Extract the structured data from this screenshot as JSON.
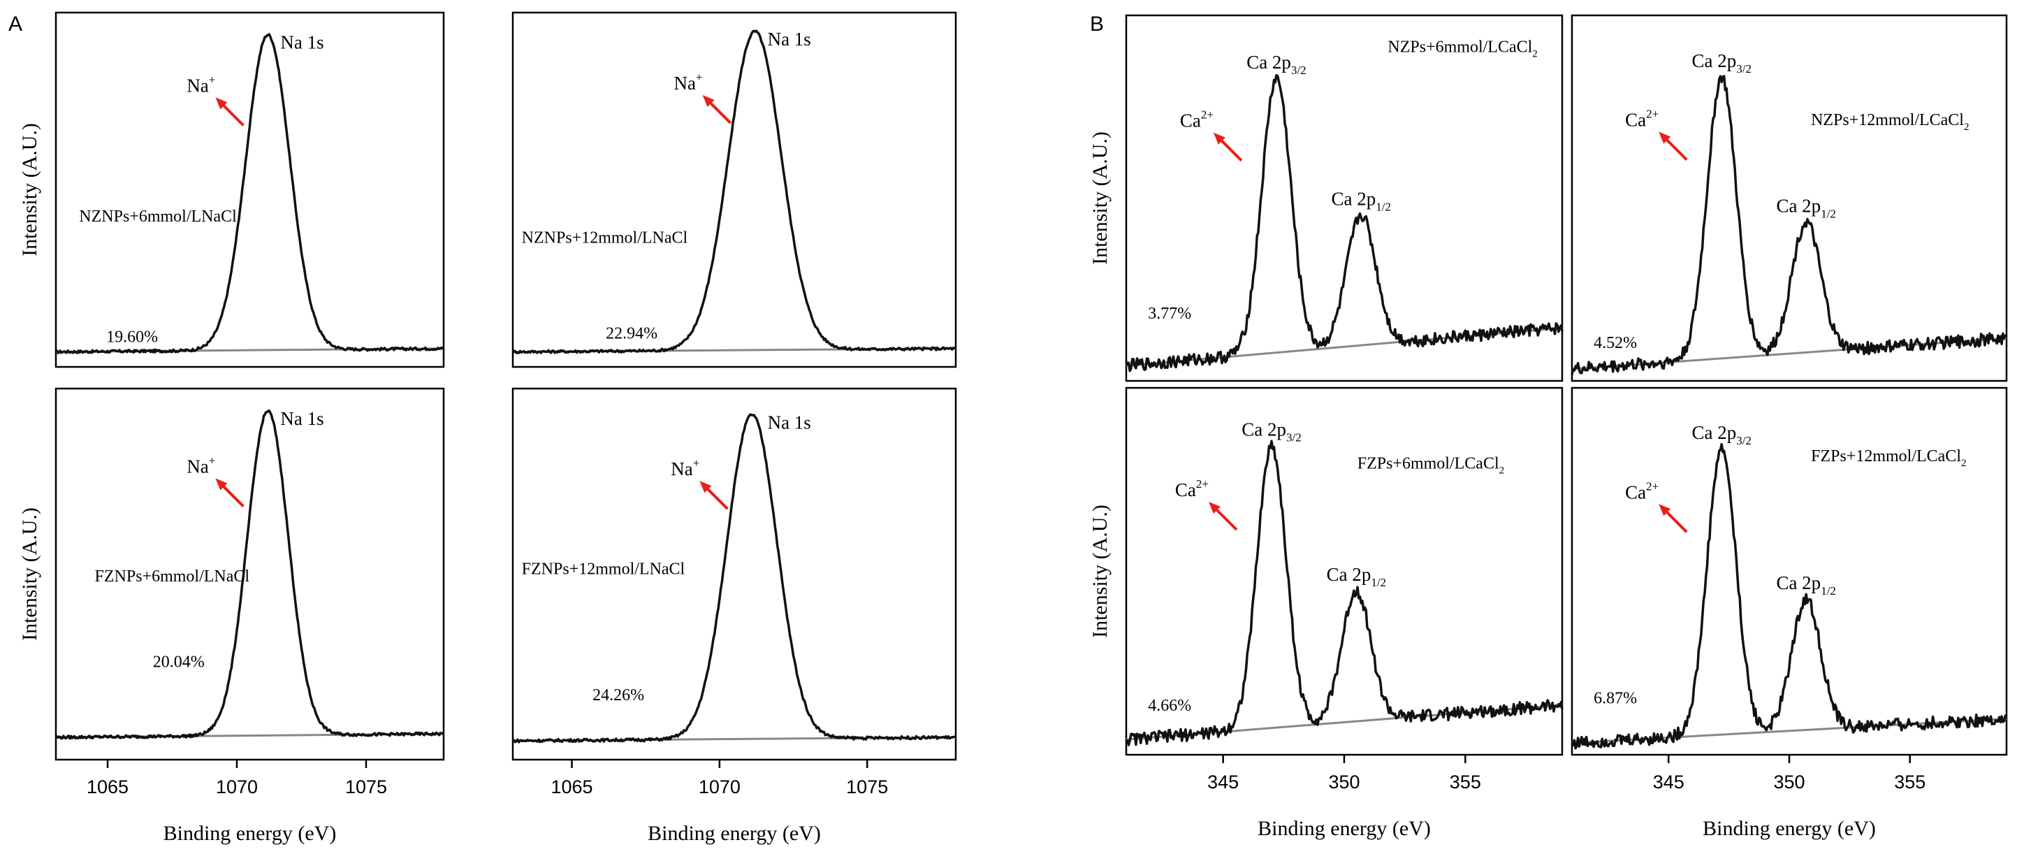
{
  "figure": {
    "panel_a_letter": "A",
    "panel_b_letter": "B",
    "arrow_color": "#e8201a",
    "curve_color": "#111111",
    "baseline_color": "#888888"
  },
  "chart_data": [
    {
      "id": "a1",
      "type": "line",
      "title": "NZNPs+6mmol/LNaCl",
      "percent": "19.60%",
      "xlabel": "",
      "ylabel": "Intensity (A.U.)",
      "xlim": [
        1063,
        1078
      ],
      "ylim": [
        0,
        1
      ],
      "peak_labels": [
        {
          "main": "Na 1s",
          "sub": "",
          "x": 1071.2
        }
      ],
      "ion": {
        "base": "Na",
        "sup": "+"
      },
      "series": [
        {
          "name": "Na 1s spectrum",
          "peaks": [
            {
              "center": 1071.2,
              "height": 0.95,
              "width": 0.85
            }
          ],
          "baseline": [
            0.02,
            0.03
          ]
        },
        {
          "name": "background",
          "values": [
            0.02,
            0.03
          ]
        }
      ]
    },
    {
      "id": "a2",
      "type": "line",
      "title": "NZNPs+12mmol/LNaCl",
      "percent": "22.94%",
      "xlabel": "",
      "ylabel": "",
      "xlim": [
        1063,
        1078
      ],
      "ylim": [
        0,
        1
      ],
      "peak_labels": [
        {
          "main": "Na 1s",
          "sub": "",
          "x": 1071.2
        }
      ],
      "ion": {
        "base": "Na",
        "sup": "+"
      },
      "series": [
        {
          "name": "Na 1s spectrum",
          "peaks": [
            {
              "center": 1071.2,
              "height": 0.96,
              "width": 0.9
            }
          ],
          "baseline": [
            0.02,
            0.03
          ]
        },
        {
          "name": "background",
          "values": [
            0.02,
            0.03
          ]
        }
      ]
    },
    {
      "id": "a3",
      "type": "line",
      "title": "FZNPs+6mmol/LNaCl",
      "percent": "20.04%",
      "xlabel": "Binding energy (eV)",
      "ylabel": "Intensity (A.U.)",
      "xlim": [
        1063,
        1078
      ],
      "ylim": [
        0,
        1
      ],
      "xticks": [
        1065,
        1070,
        1075
      ],
      "peak_labels": [
        {
          "main": "Na 1s",
          "sub": "",
          "x": 1071.2
        }
      ],
      "ion": {
        "base": "Na",
        "sup": "+"
      },
      "series": [
        {
          "name": "Na 1s spectrum",
          "peaks": [
            {
              "center": 1071.2,
              "height": 0.93,
              "width": 0.8
            }
          ],
          "baseline": [
            0.04,
            0.05
          ]
        },
        {
          "name": "background",
          "values": [
            0.04,
            0.05
          ]
        }
      ]
    },
    {
      "id": "a4",
      "type": "line",
      "title": "FZNPs+12mmol/LNaCl",
      "percent": "24.26%",
      "xlabel": "Binding energy (eV)",
      "ylabel": "",
      "xlim": [
        1063,
        1078
      ],
      "ylim": [
        0,
        1
      ],
      "xticks": [
        1065,
        1070,
        1075
      ],
      "peak_labels": [
        {
          "main": "Na 1s",
          "sub": "",
          "x": 1071.2
        }
      ],
      "ion": {
        "base": "Na",
        "sup": "+"
      },
      "series": [
        {
          "name": "Na 1s spectrum",
          "peaks": [
            {
              "center": 1071.1,
              "height": 0.93,
              "width": 0.85
            }
          ],
          "baseline": [
            0.03,
            0.04
          ]
        },
        {
          "name": "background",
          "values": [
            0.03,
            0.04
          ]
        }
      ]
    },
    {
      "id": "b1",
      "type": "line",
      "title": "NZPs+6mmol/LCaCl",
      "title_sub": "2",
      "percent": "3.77%",
      "xlabel": "",
      "ylabel": "Intensity (A.U.)",
      "xlim": [
        341,
        359
      ],
      "ylim": [
        0,
        1
      ],
      "peak_labels": [
        {
          "main": "Ca 2p",
          "sub": "3/2",
          "x": 347.2
        },
        {
          "main": "Ca 2p",
          "sub": "1/2",
          "x": 350.7
        }
      ],
      "ion": {
        "base": "Ca",
        "sup": "2+"
      },
      "series": [
        {
          "name": "Ca 2p spectrum",
          "peaks": [
            {
              "center": 347.2,
              "height": 0.8,
              "width": 0.6
            },
            {
              "center": 350.7,
              "height": 0.38,
              "width": 0.6
            }
          ],
          "baseline": [
            0.02,
            0.13
          ]
        },
        {
          "name": "background",
          "values": [
            0.02,
            0.13
          ]
        }
      ]
    },
    {
      "id": "b2",
      "type": "line",
      "title": "NZPs+12mmol/LCaCl",
      "title_sub": "2",
      "percent": "4.52%",
      "xlabel": "",
      "ylabel": "",
      "xlim": [
        341,
        359
      ],
      "ylim": [
        0,
        1
      ],
      "peak_labels": [
        {
          "main": "Ca 2p",
          "sub": "3/2",
          "x": 347.2
        },
        {
          "main": "Ca 2p",
          "sub": "1/2",
          "x": 350.7
        }
      ],
      "ion": {
        "base": "Ca",
        "sup": "2+"
      },
      "series": [
        {
          "name": "Ca 2p spectrum",
          "peaks": [
            {
              "center": 347.2,
              "height": 0.82,
              "width": 0.6
            },
            {
              "center": 350.7,
              "height": 0.38,
              "width": 0.6
            }
          ],
          "baseline": [
            0.01,
            0.1
          ]
        },
        {
          "name": "background",
          "values": [
            0.01,
            0.1
          ]
        }
      ]
    },
    {
      "id": "b3",
      "type": "line",
      "title": "FZPs+6mmol/LCaCl",
      "title_sub": "2",
      "percent": "4.66%",
      "xlabel": "Binding energy (eV)",
      "ylabel": "Intensity (A.U.)",
      "xlim": [
        341,
        359
      ],
      "ylim": [
        0,
        1
      ],
      "xticks": [
        345,
        350,
        355
      ],
      "peak_labels": [
        {
          "main": "Ca 2p",
          "sub": "3/2",
          "x": 347.0
        },
        {
          "main": "Ca 2p",
          "sub": "1/2",
          "x": 350.5
        }
      ],
      "ion": {
        "base": "Ca",
        "sup": "2+"
      },
      "series": [
        {
          "name": "Ca 2p spectrum",
          "peaks": [
            {
              "center": 347.0,
              "height": 0.82,
              "width": 0.6
            },
            {
              "center": 350.5,
              "height": 0.38,
              "width": 0.6
            }
          ],
          "baseline": [
            0.02,
            0.12
          ]
        },
        {
          "name": "background",
          "values": [
            0.02,
            0.12
          ]
        }
      ]
    },
    {
      "id": "b4",
      "type": "line",
      "title": "FZPs+12mmol/LCaCl",
      "title_sub": "2",
      "percent": "6.87%",
      "xlabel": "Binding energy (eV)",
      "ylabel": "",
      "xlim": [
        341,
        359
      ],
      "ylim": [
        0,
        1
      ],
      "xticks": [
        345,
        350,
        355
      ],
      "peak_labels": [
        {
          "main": "Ca 2p",
          "sub": "3/2",
          "x": 347.2
        },
        {
          "main": "Ca 2p",
          "sub": "1/2",
          "x": 350.7
        }
      ],
      "ion": {
        "base": "Ca",
        "sup": "2+"
      },
      "series": [
        {
          "name": "Ca 2p spectrum",
          "peaks": [
            {
              "center": 347.2,
              "height": 0.83,
              "width": 0.6
            },
            {
              "center": 350.7,
              "height": 0.38,
              "width": 0.6
            }
          ],
          "baseline": [
            0.01,
            0.08
          ]
        },
        {
          "name": "background",
          "values": [
            0.01,
            0.08
          ]
        }
      ]
    }
  ]
}
